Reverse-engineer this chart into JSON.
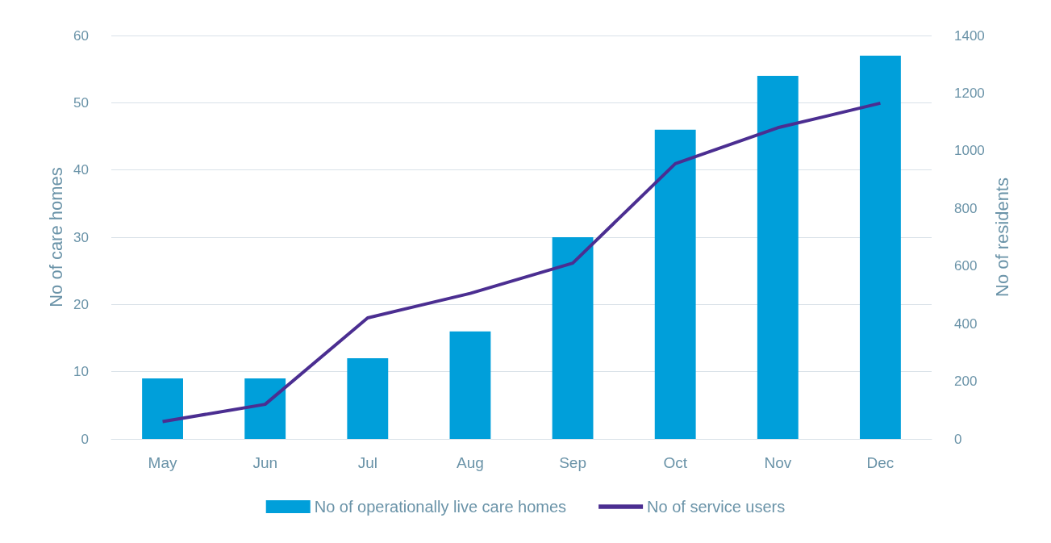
{
  "chart_data": {
    "type": "bar",
    "ylabel": "No of care homes",
    "y2label": "No of residents",
    "categories": [
      "May",
      "Jun",
      "Jul",
      "Aug",
      "Sep",
      "Oct",
      "Nov",
      "Dec"
    ],
    "series": [
      {
        "name": "No of operationally live care homes",
        "color": "#009fda",
        "values": [
          9,
          9,
          12,
          16,
          30,
          46,
          54,
          57
        ]
      },
      {
        "name": "No of service users",
        "type": "line",
        "axis": "y2",
        "color": "#4b2e91",
        "marker": "none",
        "values": [
          60,
          120,
          420,
          505,
          610,
          955,
          1080,
          1165
        ]
      }
    ],
    "ylim": [
      0,
      60
    ],
    "yticks": [
      0,
      10,
      20,
      30,
      40,
      50,
      60
    ],
    "y2lim": [
      0,
      1400
    ],
    "y2ticks": [
      0,
      200,
      400,
      600,
      800,
      1000,
      1200,
      1400
    ],
    "grid": "y",
    "legend": "bottom"
  }
}
